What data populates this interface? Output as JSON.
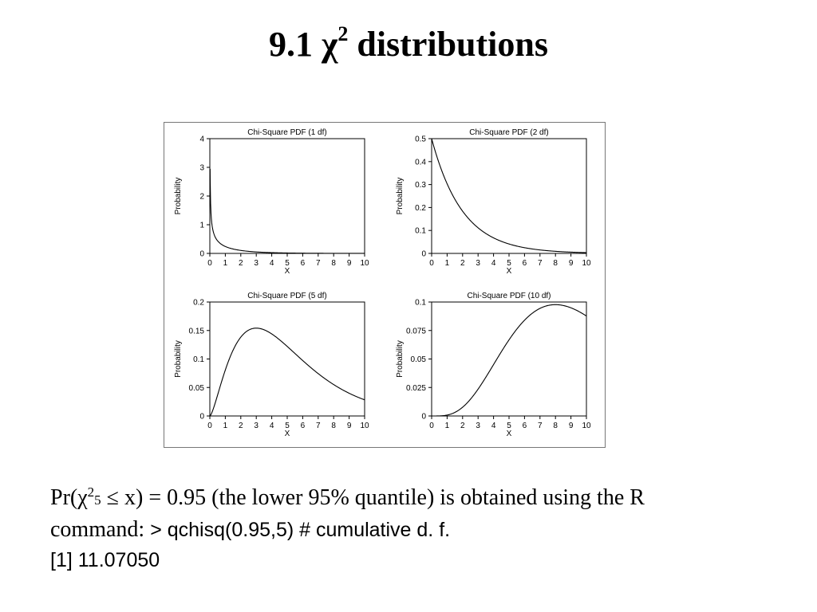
{
  "title": {
    "prefix": "9.1 ",
    "chi": "χ",
    "sup": "2",
    "suffix": " distributions"
  },
  "chart_data": [
    {
      "type": "line",
      "title": "Chi-Square PDF (1 df)",
      "df": 1,
      "xlabel": "X",
      "ylabel": "Probability",
      "xlim": [
        0,
        10
      ],
      "ylim": [
        0,
        4
      ],
      "xticks": [
        0,
        1,
        2,
        3,
        4,
        5,
        6,
        7,
        8,
        9,
        10
      ],
      "yticks": [
        0,
        1,
        2,
        3,
        4
      ],
      "ytick_labels": [
        "0",
        "1",
        "2",
        "3",
        "4"
      ],
      "series": [
        {
          "x": [
            0.02,
            0.05,
            0.1,
            0.2,
            0.3,
            0.5,
            1,
            1.5,
            2,
            3,
            4,
            5,
            6,
            7,
            8,
            9,
            10
          ],
          "y": [
            2.8,
            1.76,
            1.2,
            0.81,
            0.63,
            0.44,
            0.24,
            0.15,
            0.1,
            0.05,
            0.03,
            0.015,
            0.008,
            0.005,
            0.003,
            0.001,
            0.001
          ]
        }
      ],
      "grid": false
    },
    {
      "type": "line",
      "title": "Chi-Square PDF (2 df)",
      "df": 2,
      "xlabel": "X",
      "ylabel": "Probability",
      "xlim": [
        0,
        10
      ],
      "ylim": [
        0,
        0.5
      ],
      "xticks": [
        0,
        1,
        2,
        3,
        4,
        5,
        6,
        7,
        8,
        9,
        10
      ],
      "yticks": [
        0,
        0.1,
        0.2,
        0.3,
        0.4,
        0.5
      ],
      "ytick_labels": [
        "0",
        "0.1",
        "0.2",
        "0.3",
        "0.4",
        "0.5"
      ],
      "series": [
        {
          "x": [
            0,
            1,
            2,
            3,
            4,
            5,
            6,
            7,
            8,
            9,
            10
          ],
          "y": [
            0.5,
            0.303,
            0.184,
            0.112,
            0.068,
            0.041,
            0.025,
            0.015,
            0.009,
            0.006,
            0.003
          ]
        }
      ],
      "grid": false
    },
    {
      "type": "line",
      "title": "Chi-Square PDF (5 df)",
      "df": 5,
      "xlabel": "X",
      "ylabel": "Probability",
      "xlim": [
        0,
        10
      ],
      "ylim": [
        0,
        0.2
      ],
      "xticks": [
        0,
        1,
        2,
        3,
        4,
        5,
        6,
        7,
        8,
        9,
        10
      ],
      "yticks": [
        0,
        0.05,
        0.1,
        0.15,
        0.2
      ],
      "ytick_labels": [
        "0",
        "0.05",
        "0.1",
        "0.15",
        "0.2"
      ],
      "series": [
        {
          "x": [
            0,
            1,
            2,
            3,
            4,
            5,
            6,
            7,
            8,
            9,
            10
          ],
          "y": [
            0,
            0.081,
            0.138,
            0.154,
            0.144,
            0.122,
            0.097,
            0.074,
            0.055,
            0.04,
            0.028
          ]
        }
      ],
      "grid": false
    },
    {
      "type": "line",
      "title": "Chi-Square PDF (10 df)",
      "df": 10,
      "xlabel": "X",
      "ylabel": "Probability",
      "xlim": [
        0,
        10
      ],
      "ylim": [
        0,
        0.1
      ],
      "xticks": [
        0,
        1,
        2,
        3,
        4,
        5,
        6,
        7,
        8,
        9,
        10
      ],
      "yticks": [
        0,
        0.025,
        0.05,
        0.075,
        0.1
      ],
      "ytick_labels": [
        "0",
        "0.025",
        "0.05",
        "0.075",
        "0.1"
      ],
      "series": [
        {
          "x": [
            0,
            1,
            2,
            3,
            4,
            5,
            6,
            7,
            8,
            9,
            10
          ],
          "y": [
            0,
            0.001,
            0.008,
            0.025,
            0.045,
            0.067,
            0.084,
            0.094,
            0.098,
            0.095,
            0.088
          ]
        }
      ],
      "grid": false
    }
  ],
  "notes": {
    "line1": {
      "a": "Pr(",
      "chi": "χ",
      "sup": "2",
      "sub": "5",
      "b": " ≤ x) = 0.95 (the lower 95% quantile) is obtained using the R"
    },
    "line2": {
      "a": "command: ",
      "b": "> qchisq(0.95,5) # cumulative d. f."
    },
    "line3": "[1] 11.07050"
  }
}
